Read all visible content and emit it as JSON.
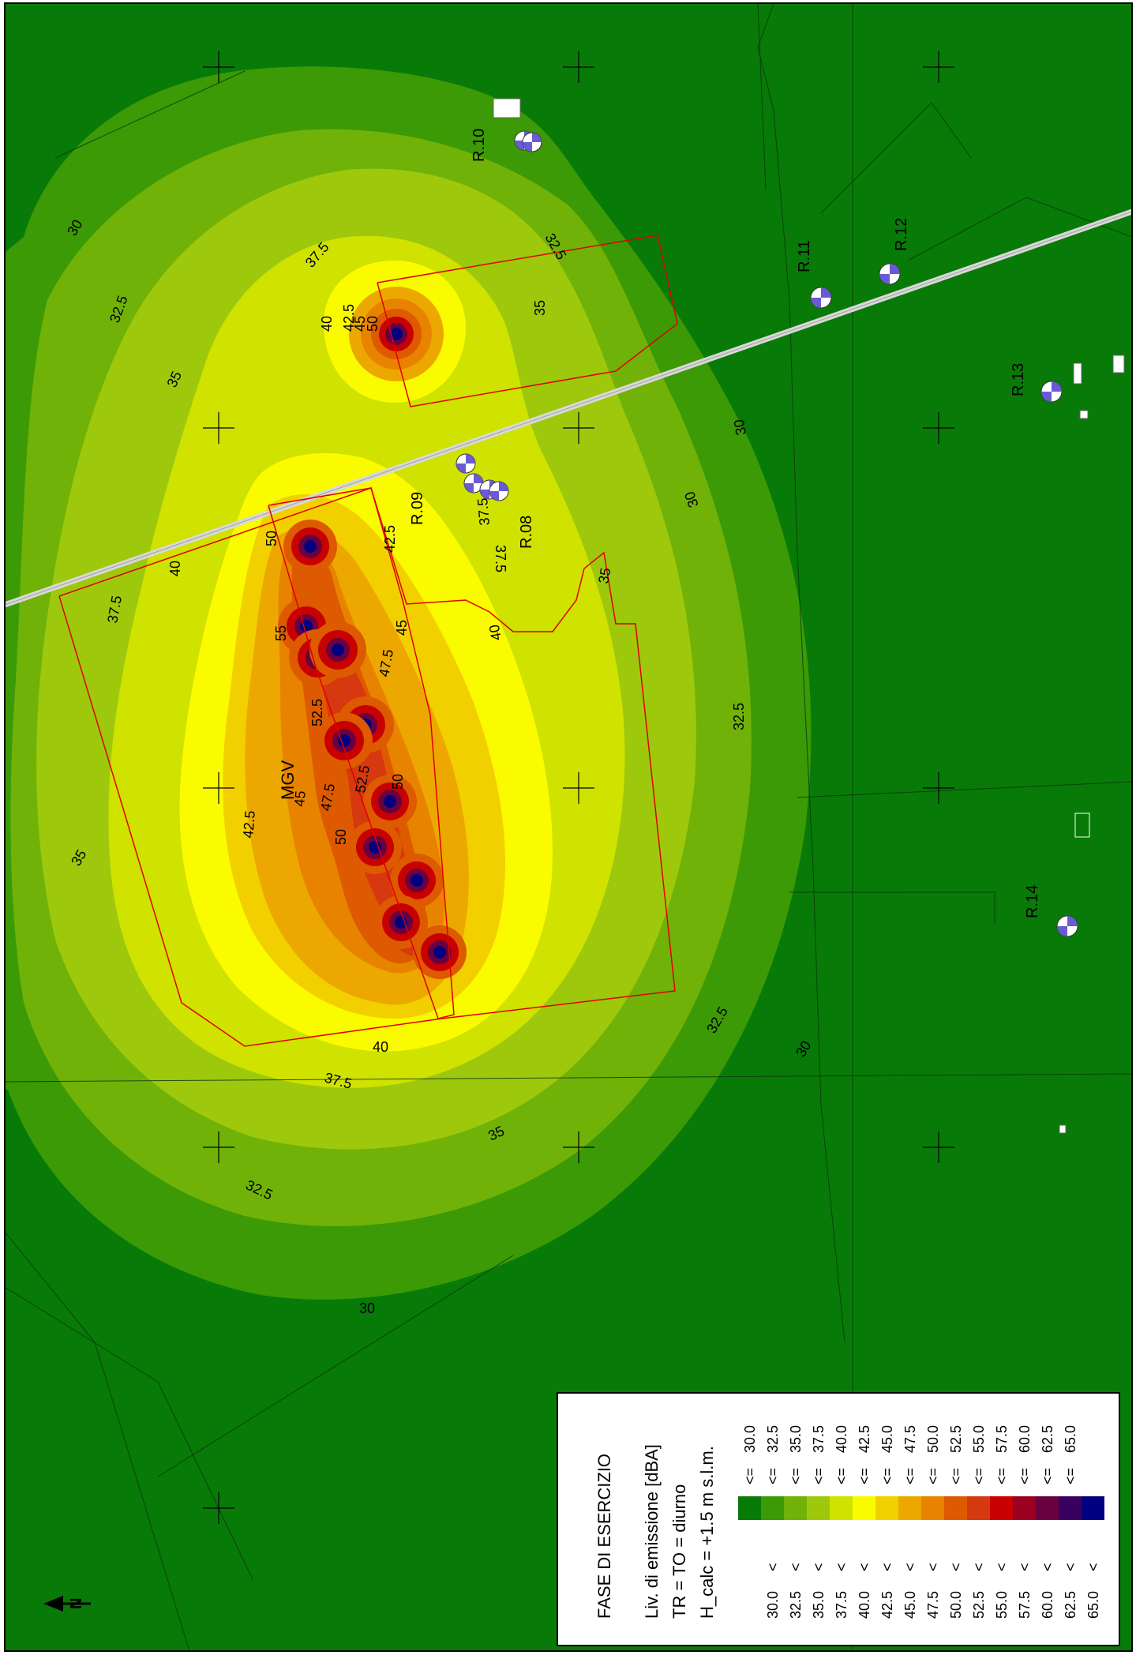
{
  "legend": {
    "title": "FASE DI ESERCIZIO",
    "line1": "Liv. di emissione [dBA]",
    "line2": "TR = TO = diurno",
    "line3": "H_calc = +1.5 m s.l.m.",
    "rows": [
      {
        "lower": "",
        "op1": "",
        "op2": "<=",
        "upper": "30.0",
        "color": "#087a08"
      },
      {
        "lower": "30.0",
        "op1": "<",
        "op2": "<=",
        "upper": "32.5",
        "color": "#3b9a05"
      },
      {
        "lower": "32.5",
        "op1": "<",
        "op2": "<=",
        "upper": "35.0",
        "color": "#70b207"
      },
      {
        "lower": "35.0",
        "op1": "<",
        "op2": "<=",
        "upper": "37.5",
        "color": "#9dc80c"
      },
      {
        "lower": "37.5",
        "op1": "<",
        "op2": "<=",
        "upper": "40.0",
        "color": "#cfe200"
      },
      {
        "lower": "40.0",
        "op1": "<",
        "op2": "<=",
        "upper": "42.5",
        "color": "#fbfb00"
      },
      {
        "lower": "42.5",
        "op1": "<",
        "op2": "<=",
        "upper": "45.0",
        "color": "#f2d000"
      },
      {
        "lower": "45.0",
        "op1": "<",
        "op2": "<=",
        "upper": "47.5",
        "color": "#eca800"
      },
      {
        "lower": "47.5",
        "op1": "<",
        "op2": "<=",
        "upper": "50.0",
        "color": "#e88300"
      },
      {
        "lower": "50.0",
        "op1": "<",
        "op2": "<=",
        "upper": "52.5",
        "color": "#dd5a00"
      },
      {
        "lower": "52.5",
        "op1": "<",
        "op2": "<=",
        "upper": "55.0",
        "color": "#d6380f"
      },
      {
        "lower": "55.0",
        "op1": "<",
        "op2": "<=",
        "upper": "57.5",
        "color": "#c80000"
      },
      {
        "lower": "57.5",
        "op1": "<",
        "op2": "<=",
        "upper": "60.0",
        "color": "#9b0020"
      },
      {
        "lower": "60.0",
        "op1": "<",
        "op2": "<=",
        "upper": "62.5",
        "color": "#6a0040"
      },
      {
        "lower": "62.5",
        "op1": "<",
        "op2": "<=",
        "upper": "65.0",
        "color": "#3a0060"
      },
      {
        "lower": "65.0",
        "op1": "<",
        "op2": "",
        "upper": "",
        "color": "#000080"
      }
    ]
  },
  "receivers": {
    "r08": "R.08",
    "r09": "R.09",
    "r10": "R.10",
    "r11": "R.11",
    "r12": "R.12",
    "r13": "R.13",
    "r14": "R.14"
  },
  "site_label": "MGV",
  "north_label": "N",
  "contour_labels": {
    "c30": "30",
    "c32_5": "32.5",
    "c35": "35",
    "c37_5": "37.5",
    "c40": "40",
    "c42_5": "42.5",
    "c45": "45",
    "c47_5": "47.5",
    "c50": "50",
    "c52_5": "52.5",
    "c55": "55"
  }
}
